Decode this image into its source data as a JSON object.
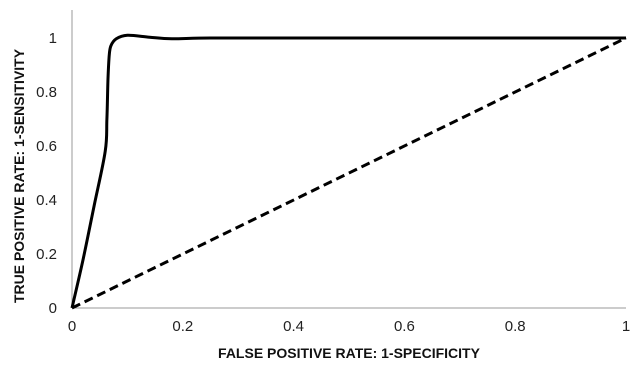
{
  "chart_data": {
    "type": "line",
    "xlabel": "FALSE POSITIVE RATE: 1-SPECIFICITY",
    "ylabel": "TRUE POSITIVE RATE: 1-SENSITIVITY",
    "xlim": [
      0,
      1
    ],
    "ylim": [
      0,
      1
    ],
    "x_ticks": [
      "0",
      "0.2",
      "0.4",
      "0.6",
      "0.8",
      "1"
    ],
    "y_ticks": [
      "0",
      "0.2",
      "0.4",
      "0.6",
      "0.8",
      "1"
    ],
    "grid": false,
    "legend": "none",
    "series": [
      {
        "style": "solid",
        "color": "#000000",
        "x": [
          0,
          0.02,
          0.04,
          0.06,
          0.063,
          0.065,
          0.067,
          0.07,
          0.08,
          0.1,
          0.14,
          0.18,
          0.25,
          0.4,
          0.6,
          0.8,
          1
        ],
        "y": [
          0,
          0.18,
          0.38,
          0.58,
          0.7,
          0.85,
          0.93,
          0.97,
          0.997,
          1.01,
          1.003,
          0.997,
          1.0,
          1.0,
          1.0,
          1.0,
          1.0
        ]
      },
      {
        "style": "dashed",
        "color": "#000000",
        "x": [
          0,
          1
        ],
        "y": [
          0,
          1
        ]
      }
    ]
  }
}
